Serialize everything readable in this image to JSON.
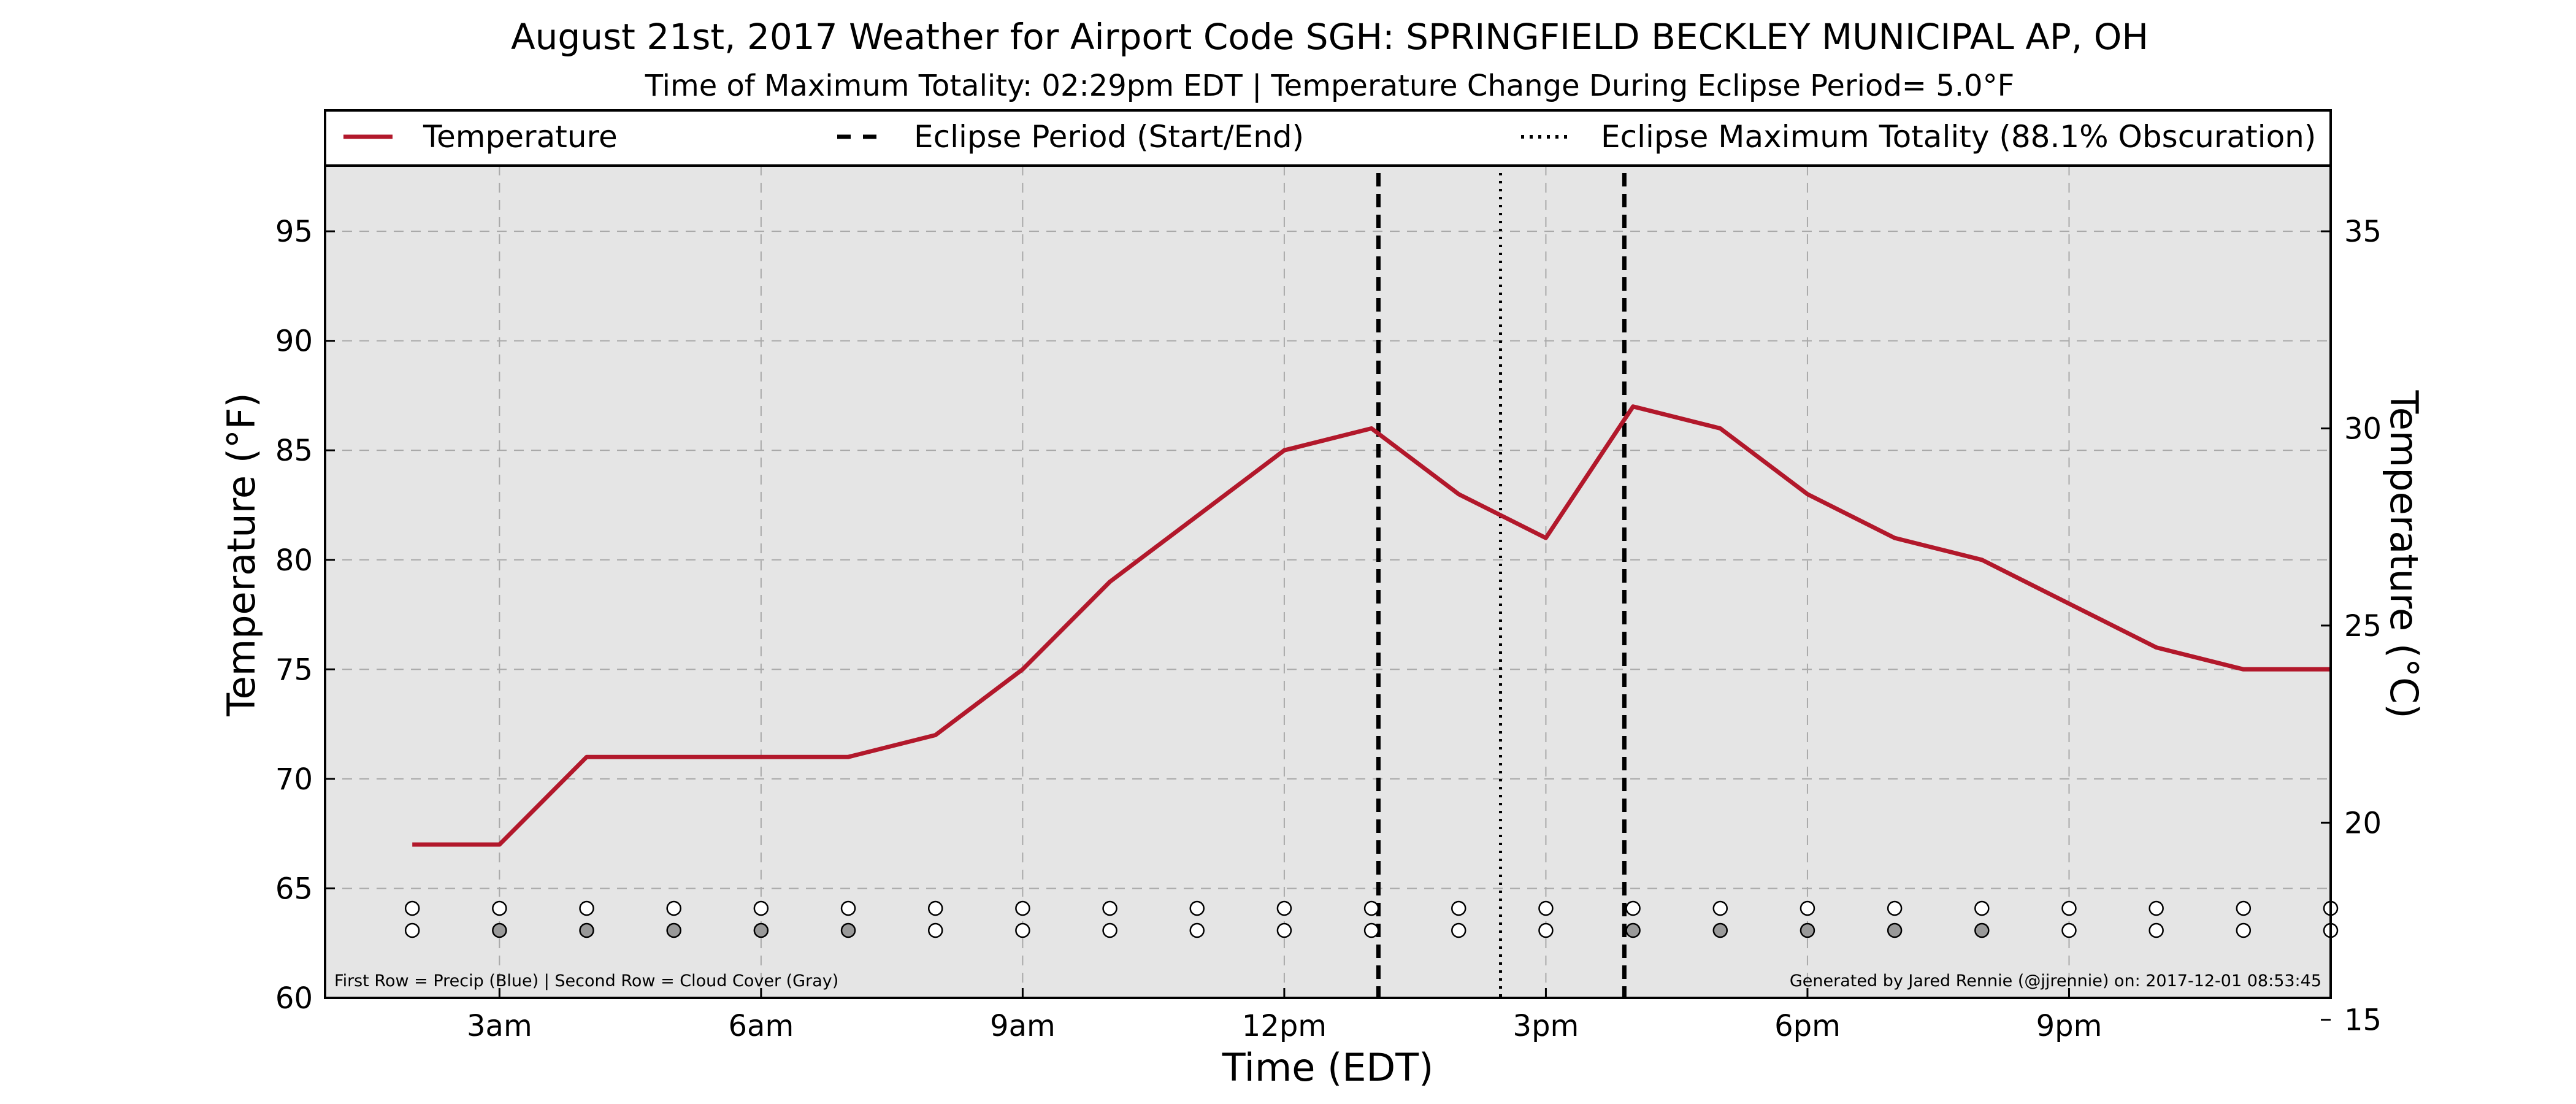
{
  "chart_data": {
    "type": "line",
    "title": "August 21st, 2017 Weather for Airport Code SGH: SPRINGFIELD BECKLEY MUNICIPAL AP, OH",
    "subtitle": "Time of Maximum Totality: 02:29pm EDT | Temperature Change During Eclipse Period= 5.0°F",
    "xlabel": "Time (EDT)",
    "ylabel": "Temperature (°F)",
    "ylabel_right": "Temperature (°C)",
    "xlim": [
      1,
      24
    ],
    "ylim": [
      60,
      98
    ],
    "ylim_right_c": [
      15.56,
      36.67
    ],
    "grid": true,
    "legend_placement": "top",
    "x_ticks": [
      {
        "x": 3,
        "label": "3am"
      },
      {
        "x": 6,
        "label": "6am"
      },
      {
        "x": 9,
        "label": "9am"
      },
      {
        "x": 12,
        "label": "12pm"
      },
      {
        "x": 15,
        "label": "3pm"
      },
      {
        "x": 18,
        "label": "6pm"
      },
      {
        "x": 21,
        "label": "9pm"
      }
    ],
    "y_ticks": [
      60,
      65,
      70,
      75,
      80,
      85,
      90,
      95
    ],
    "y_ticks_right": [
      15,
      20,
      25,
      30,
      35
    ],
    "series": [
      {
        "name": "Temperature",
        "color": "#b2182b",
        "x": [
          2,
          3,
          4,
          5,
          6,
          7,
          8,
          9,
          10,
          11,
          12,
          13,
          14,
          15,
          16,
          17,
          18,
          19,
          20,
          21,
          22,
          23,
          24
        ],
        "values": [
          67,
          67,
          71,
          71,
          71,
          71,
          72,
          75,
          79,
          82,
          85,
          86,
          83,
          81,
          87,
          86,
          83,
          81,
          80,
          78,
          76,
          75,
          75
        ]
      }
    ],
    "eclipse_start": 13.08,
    "eclipse_end": 15.9,
    "eclipse_max": 14.48,
    "legend": [
      {
        "label": "Temperature",
        "style": "solid",
        "color": "#b2182b"
      },
      {
        "label": "Eclipse Period (Start/End)",
        "style": "dashed",
        "color": "#000000"
      },
      {
        "label": "Eclipse Maximum Totality (88.1% Obscuration)",
        "style": "dotted",
        "color": "#000000"
      }
    ],
    "precip_row": {
      "x": [
        2,
        3,
        4,
        5,
        6,
        7,
        8,
        9,
        10,
        11,
        12,
        13,
        14,
        15,
        16,
        17,
        18,
        19,
        20,
        21,
        22,
        23,
        24
      ],
      "fill": [
        "#ffffff",
        "#ffffff",
        "#ffffff",
        "#ffffff",
        "#ffffff",
        "#ffffff",
        "#ffffff",
        "#ffffff",
        "#ffffff",
        "#ffffff",
        "#ffffff",
        "#ffffff",
        "#ffffff",
        "#ffffff",
        "#ffffff",
        "#ffffff",
        "#ffffff",
        "#ffffff",
        "#ffffff",
        "#ffffff",
        "#ffffff",
        "#ffffff",
        "#ffffff"
      ]
    },
    "cloud_row": {
      "x": [
        2,
        3,
        4,
        5,
        6,
        7,
        8,
        9,
        10,
        11,
        12,
        13,
        14,
        15,
        16,
        17,
        18,
        19,
        20,
        21,
        22,
        23,
        24
      ],
      "fill": [
        "#ffffff",
        "#999999",
        "#999999",
        "#999999",
        "#999999",
        "#999999",
        "#ffffff",
        "#ffffff",
        "#ffffff",
        "#ffffff",
        "#ffffff",
        "#ffffff",
        "#ffffff",
        "#ffffff",
        "#999999",
        "#999999",
        "#999999",
        "#999999",
        "#999999",
        "#ffffff",
        "#ffffff",
        "#ffffff",
        "#ffffff"
      ]
    },
    "footnote_left": "First Row = Precip (Blue) | Second Row = Cloud Cover (Gray)",
    "footnote_right": "Generated by Jared Rennie (@jjrennie) on: 2017-12-01 08:53:45"
  },
  "colors": {
    "plot_background": "#e5e5e5",
    "grid": "#a9a9a9",
    "line": "#b2182b"
  }
}
